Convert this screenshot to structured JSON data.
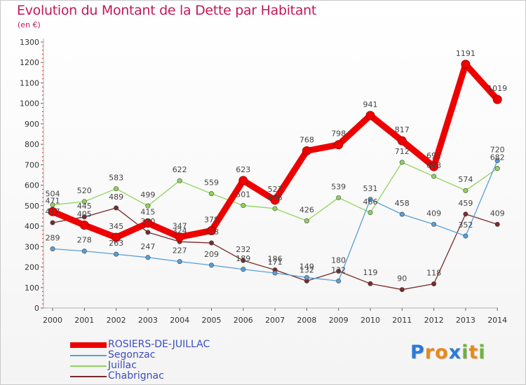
{
  "header": {
    "title": "Evolution du Montant de la Dette par Habitant",
    "unit": "(en €)"
  },
  "logo": {
    "letters": [
      "P",
      "r",
      "o",
      "x",
      "i",
      "t",
      "i"
    ],
    "colors": [
      "#2b7bd6",
      "#e8891a",
      "#e8891a",
      "#2b7bd6",
      "#6db33f",
      "#e8891a",
      "#6db33f"
    ]
  },
  "chart_data": {
    "type": "line",
    "title": "Evolution du Montant de la Dette par Habitant",
    "ylabel": "(en €)",
    "xlabel": "",
    "x": [
      "2000",
      "2001",
      "2002",
      "2003",
      "2004",
      "2005",
      "2006",
      "2007",
      "2008",
      "2009",
      "2010",
      "2011",
      "2012",
      "2013",
      "2014"
    ],
    "ylim": [
      0,
      1300
    ],
    "yticks": [
      0,
      100,
      200,
      300,
      400,
      500,
      600,
      700,
      800,
      900,
      1000,
      1100,
      1200,
      1300
    ],
    "grid": false,
    "legend_position": "bottom-left",
    "series": [
      {
        "name": "ROSIERS-DE-JUILLAC",
        "color": "#ee0000",
        "values": [
          471,
          405,
          345,
          415,
          347,
          378,
          623,
          527,
          768,
          798,
          941,
          817,
          691,
          1191,
          1019
        ]
      },
      {
        "name": "Segonzac",
        "color": "#5a9fd6",
        "values": [
          289,
          278,
          263,
          247,
          227,
          209,
          189,
          171,
          149,
          132,
          531,
          458,
          409,
          352,
          720
        ]
      },
      {
        "name": "Juillac",
        "color": "#8fd45a",
        "values": [
          504,
          520,
          583,
          499,
          622,
          559,
          501,
          486,
          426,
          539,
          466,
          712,
          643,
          574,
          682
        ]
      },
      {
        "name": "Chabrignac",
        "color": "#7a2a2a",
        "values": [
          417,
          445,
          489,
          370,
          324,
          318,
          232,
          186,
          132,
          180,
          119,
          90,
          118,
          459,
          409
        ]
      }
    ]
  }
}
